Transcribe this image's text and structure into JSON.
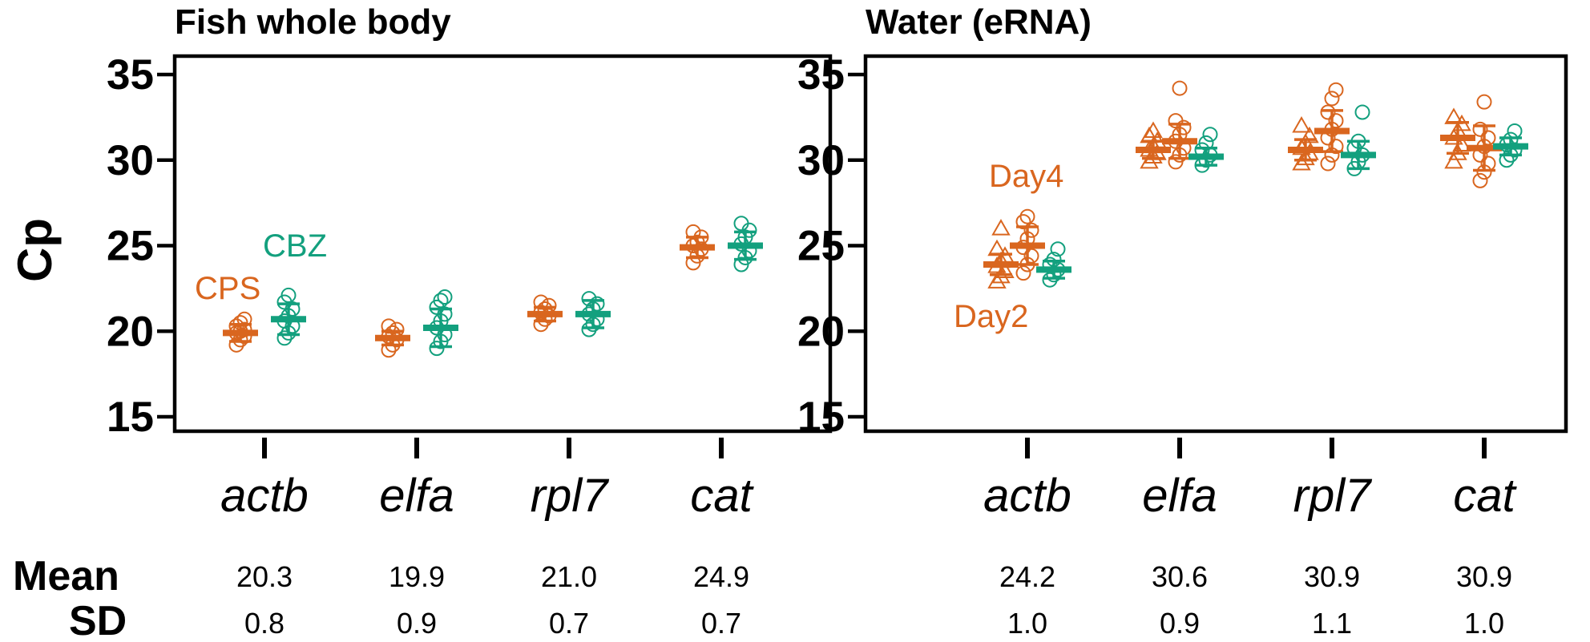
{
  "colors": {
    "cps": "#d9661f",
    "cbz": "#13a07e",
    "axis": "#000000"
  },
  "ylabel": "Cp",
  "summary_labels": {
    "mean": "Mean",
    "sd": "SD"
  },
  "chart_data": [
    {
      "type": "scatter",
      "title": "Fish whole body",
      "ylabel": "Cp",
      "ylim": [
        15,
        35
      ],
      "yticks": [
        15,
        20,
        25,
        30,
        35
      ],
      "categories": [
        "actb",
        "elfa",
        "rpl7",
        "cat"
      ],
      "annotations": [
        {
          "text": "CPS",
          "color": "cps"
        },
        {
          "text": "CBZ",
          "color": "cbz"
        }
      ],
      "series": [
        {
          "name": "CPS",
          "color": "cps",
          "marker": "circle",
          "offset": -0.2,
          "groups": [
            {
              "mean": 19.9,
              "sd": 0.5,
              "points": [
                19.2,
                19.5,
                19.7,
                19.9,
                20.0,
                20.1,
                20.3,
                20.5,
                20.7
              ]
            },
            {
              "mean": 19.6,
              "sd": 0.4,
              "points": [
                18.9,
                19.2,
                19.5,
                19.7,
                19.9,
                20.1,
                20.3
              ]
            },
            {
              "mean": 21.0,
              "sd": 0.4,
              "points": [
                20.4,
                20.7,
                20.9,
                21.1,
                21.3,
                21.5,
                21.7
              ]
            },
            {
              "mean": 24.9,
              "sd": 0.6,
              "points": [
                24.0,
                24.4,
                24.8,
                25.0,
                25.2,
                25.5,
                25.8
              ]
            }
          ]
        },
        {
          "name": "CBZ",
          "color": "cbz",
          "marker": "circle",
          "offset": 0.2,
          "groups": [
            {
              "mean": 20.7,
              "sd": 0.9,
              "points": [
                19.6,
                19.9,
                20.3,
                20.6,
                20.9,
                21.3,
                21.7,
                22.1
              ]
            },
            {
              "mean": 20.2,
              "sd": 1.1,
              "points": [
                19.0,
                19.4,
                19.8,
                20.2,
                20.6,
                21.0,
                21.4,
                21.8,
                22.0
              ]
            },
            {
              "mean": 21.0,
              "sd": 0.8,
              "points": [
                20.1,
                20.4,
                20.7,
                21.0,
                21.3,
                21.6,
                21.9
              ]
            },
            {
              "mean": 25.0,
              "sd": 0.8,
              "points": [
                23.9,
                24.3,
                24.7,
                25.1,
                25.5,
                25.9,
                26.3
              ]
            }
          ]
        }
      ],
      "summary": {
        "mean": [
          "20.3",
          "19.9",
          "21.0",
          "24.9"
        ],
        "sd": [
          "0.8",
          "0.9",
          "0.7",
          "0.7"
        ]
      }
    },
    {
      "type": "scatter",
      "title": "Water (eRNA)",
      "ylabel": "Cp",
      "ylim": [
        15,
        35
      ],
      "yticks": [
        15,
        20,
        25,
        30,
        35
      ],
      "categories": [
        "actb",
        "elfa",
        "rpl7",
        "cat"
      ],
      "annotations": [
        {
          "text": "Day4",
          "color": "cps"
        },
        {
          "text": "Day2",
          "color": "cps"
        }
      ],
      "series": [
        {
          "name": "Day2",
          "color": "cps",
          "marker": "triangle",
          "offset": -0.22,
          "groups": [
            {
              "mean": 23.9,
              "sd": 0.6,
              "points": [
                22.9,
                23.2,
                23.5,
                23.8,
                24.1,
                24.4,
                24.8,
                26.0
              ]
            },
            {
              "mean": 30.6,
              "sd": 0.5,
              "points": [
                29.9,
                30.2,
                30.4,
                30.6,
                30.8,
                31.1,
                31.4,
                31.7
              ]
            },
            {
              "mean": 30.6,
              "sd": 0.6,
              "points": [
                29.8,
                30.1,
                30.4,
                30.7,
                31.0,
                31.4,
                32.0
              ]
            },
            {
              "mean": 31.3,
              "sd": 0.9,
              "points": [
                29.9,
                30.4,
                30.9,
                31.3,
                31.7,
                32.1,
                32.5
              ]
            }
          ]
        },
        {
          "name": "Day4",
          "color": "cps",
          "marker": "circle",
          "offset": 0.0,
          "groups": [
            {
              "mean": 25.0,
              "sd": 1.1,
              "points": [
                23.4,
                23.9,
                24.4,
                24.9,
                25.4,
                25.9,
                26.4,
                26.7
              ]
            },
            {
              "mean": 31.1,
              "sd": 1.0,
              "points": [
                29.9,
                30.3,
                30.7,
                31.1,
                31.5,
                31.9,
                32.3,
                34.2
              ]
            },
            {
              "mean": 31.7,
              "sd": 1.2,
              "points": [
                29.8,
                30.3,
                30.8,
                31.3,
                31.8,
                32.3,
                32.8,
                33.6,
                34.1
              ]
            },
            {
              "mean": 30.7,
              "sd": 1.3,
              "points": [
                28.8,
                29.3,
                29.8,
                30.3,
                30.8,
                31.3,
                31.8,
                33.4
              ]
            }
          ]
        },
        {
          "name": "",
          "color": "cbz",
          "marker": "circle",
          "offset": 0.22,
          "groups": [
            {
              "mean": 23.6,
              "sd": 0.5,
              "points": [
                23.0,
                23.3,
                23.6,
                23.9,
                24.2,
                24.8
              ]
            },
            {
              "mean": 30.2,
              "sd": 0.5,
              "points": [
                29.7,
                30.0,
                30.3,
                30.6,
                31.0,
                31.5
              ]
            },
            {
              "mean": 30.3,
              "sd": 0.8,
              "points": [
                29.5,
                29.9,
                30.3,
                30.7,
                31.1,
                32.8
              ]
            },
            {
              "mean": 30.8,
              "sd": 0.5,
              "points": [
                30.0,
                30.3,
                30.6,
                30.9,
                31.2,
                31.7
              ]
            }
          ]
        }
      ],
      "summary": {
        "mean": [
          "24.2",
          "30.6",
          "30.9",
          "30.9"
        ],
        "sd": [
          "1.0",
          "0.9",
          "1.1",
          "1.0"
        ]
      }
    }
  ]
}
